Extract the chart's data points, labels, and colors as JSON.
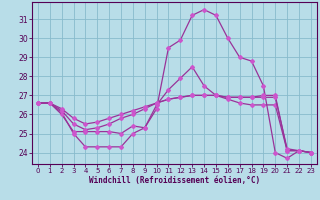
{
  "background_color": "#b8dde8",
  "grid_color": "#88bbcc",
  "line_color": "#993399",
  "xlabel": "Windchill (Refroidissement éolien,°C)",
  "ylim": [
    23.4,
    31.9
  ],
  "xlim": [
    -0.5,
    23.5
  ],
  "yticks": [
    24,
    25,
    26,
    27,
    28,
    29,
    30,
    31
  ],
  "xticks": [
    0,
    1,
    2,
    3,
    4,
    5,
    6,
    7,
    8,
    9,
    10,
    11,
    12,
    13,
    14,
    15,
    16,
    17,
    18,
    19,
    20,
    21,
    22,
    23
  ],
  "curve1_x": [
    0,
    1,
    2,
    3,
    4,
    5,
    6,
    7,
    8,
    9,
    10,
    11,
    12,
    13,
    14,
    15,
    16,
    17,
    18,
    19,
    20,
    21,
    22,
    23
  ],
  "curve1_y": [
    26.6,
    26.6,
    26.1,
    25.0,
    24.3,
    24.3,
    24.3,
    24.3,
    25.0,
    25.3,
    26.3,
    29.5,
    29.9,
    31.2,
    31.5,
    31.2,
    30.0,
    29.0,
    28.8,
    27.5,
    24.0,
    23.7,
    24.1,
    24.0
  ],
  "curve2_x": [
    0,
    1,
    2,
    3,
    4,
    5,
    6,
    7,
    8,
    9,
    10,
    11,
    12,
    13,
    14,
    15,
    16,
    17,
    18,
    19,
    20,
    21,
    22,
    23
  ],
  "curve2_y": [
    26.6,
    26.6,
    26.0,
    25.1,
    25.1,
    25.1,
    25.1,
    25.0,
    25.4,
    25.3,
    26.5,
    27.3,
    27.9,
    28.5,
    27.5,
    27.0,
    26.8,
    26.6,
    26.5,
    26.5,
    26.5,
    24.1,
    24.1,
    24.0
  ],
  "curve3_x": [
    0,
    1,
    2,
    3,
    4,
    5,
    6,
    7,
    8,
    9,
    10,
    11,
    12,
    13,
    14,
    15,
    16,
    17,
    18,
    19,
    20,
    21,
    22,
    23
  ],
  "curve3_y": [
    26.6,
    26.6,
    26.2,
    25.5,
    25.2,
    25.3,
    25.5,
    25.8,
    26.0,
    26.3,
    26.6,
    26.8,
    26.9,
    27.0,
    27.0,
    27.0,
    26.9,
    26.9,
    26.9,
    27.0,
    27.0,
    24.1,
    24.1,
    24.0
  ],
  "curve4_x": [
    0,
    1,
    2,
    3,
    4,
    5,
    6,
    7,
    8,
    9,
    10,
    11,
    12,
    13,
    14,
    15,
    16,
    17,
    18,
    19,
    20,
    21,
    22,
    23
  ],
  "curve4_y": [
    26.6,
    26.6,
    26.3,
    25.8,
    25.5,
    25.6,
    25.8,
    26.0,
    26.2,
    26.4,
    26.6,
    26.8,
    26.9,
    27.0,
    27.0,
    27.0,
    26.9,
    26.9,
    26.9,
    26.9,
    26.9,
    24.2,
    24.1,
    24.0
  ]
}
